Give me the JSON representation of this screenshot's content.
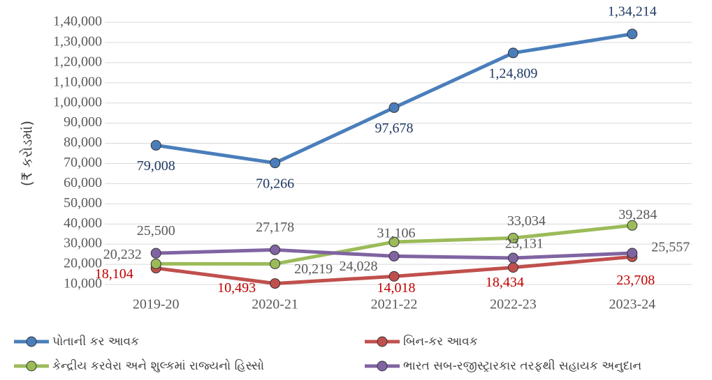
{
  "chart_data": {
    "type": "line",
    "y_label": "(₹ કરોડમાં)",
    "categories": [
      "2019-20",
      "2020-21",
      "2021-22",
      "2022-23",
      "2023-24"
    ],
    "ylim": [
      10000,
      140000
    ],
    "yticks": [
      {
        "value": 10000,
        "label": "10,000"
      },
      {
        "value": 20000,
        "label": "20,000"
      },
      {
        "value": 30000,
        "label": "30,000"
      },
      {
        "value": 40000,
        "label": "40,000"
      },
      {
        "value": 50000,
        "label": "50,000"
      },
      {
        "value": 60000,
        "label": "60,000"
      },
      {
        "value": 70000,
        "label": "70,000"
      },
      {
        "value": 80000,
        "label": "80,000"
      },
      {
        "value": 90000,
        "label": "90,000"
      },
      {
        "value": 100000,
        "label": "1,00,000"
      },
      {
        "value": 110000,
        "label": "1,10,000"
      },
      {
        "value": 120000,
        "label": "1,20,000"
      },
      {
        "value": 130000,
        "label": "1,30,000"
      },
      {
        "value": 140000,
        "label": "1,40,000"
      }
    ],
    "grid": true,
    "legend": "bottom",
    "series": [
      {
        "name": "પોતાની કર આવક",
        "color": "#4a7ebb",
        "label_color": "#1f3864",
        "values": [
          79008,
          70266,
          97678,
          124809,
          134214
        ],
        "value_labels": [
          "79,008",
          "70,266",
          "97,678",
          "1,24,809",
          "1,34,214"
        ]
      },
      {
        "name": "બિન-કર આવક",
        "color": "#c0504d",
        "label_color": "#c00000",
        "values": [
          18104,
          10493,
          14018,
          18434,
          23708
        ],
        "value_labels": [
          "18,104",
          "10,493",
          "14,018",
          "18,434",
          "23,708"
        ]
      },
      {
        "name": "કેન્દ્રીય કરવેરા અને શુલ્કમાં રાજ્યનો હિસ્સો",
        "color": "#9bbb59",
        "label_color": "#595959",
        "values": [
          20232,
          20219,
          31106,
          33034,
          39284
        ],
        "value_labels": [
          "20,232",
          "20,219",
          "31,106",
          "33,034",
          "39,284"
        ]
      },
      {
        "name": "ભારત સબ-રજીસ્ટ્રારકાર તરફથી સહાયક અનુદાન",
        "color": "#8064a2",
        "label_color": "#595959",
        "values": [
          25500,
          27178,
          24028,
          23131,
          25557
        ],
        "value_labels": [
          "25,500",
          "27,178",
          "24,028",
          "23,131",
          "25,557"
        ]
      }
    ]
  }
}
